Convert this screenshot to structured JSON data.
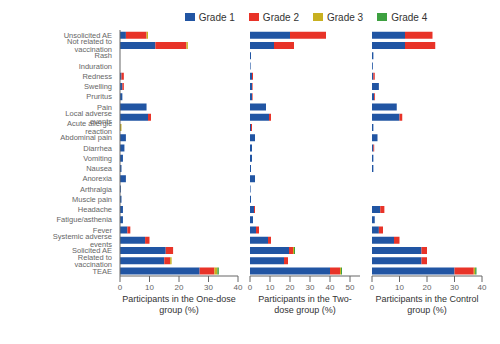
{
  "chart_data": [
    {
      "type": "bar",
      "orientation": "horizontal",
      "stacked": true,
      "legend": "top",
      "x_label": "Participants in the One-dose group (%)",
      "categories": [
        "Unsolicited AE",
        "Not related to vaccination",
        "Rash",
        "Induration",
        "Redness",
        "Swelling",
        "Pruritus",
        "Pain",
        "Local adverse events",
        "Acute allergic reaction",
        "Abdominal pain",
        "Diarrhea",
        "Vomiting",
        "Nausea",
        "Anorexia",
        "Arthralgia",
        "Muscle pain",
        "Headache",
        "Fatigue/asthenia",
        "Fever",
        "Systemic adverse events",
        "Solicited AE",
        "Related to vaccination",
        "TEAE"
      ],
      "xlim": [
        0,
        40
      ],
      "xticks": [
        0,
        10,
        20,
        30,
        40
      ],
      "series": [
        {
          "name": "Grade 1",
          "color": "#2155a3",
          "values": [
            2.0,
            12.0,
            0.0,
            0.0,
            0.5,
            0.8,
            0.8,
            9.0,
            9.5,
            0.0,
            2.0,
            1.5,
            1.0,
            0.5,
            2.0,
            0.3,
            0.5,
            1.0,
            1.0,
            2.5,
            8.5,
            15.5,
            15.0,
            27.0
          ]
        },
        {
          "name": "Grade 2",
          "color": "#e83328",
          "values": [
            7.0,
            10.5,
            0.0,
            0.0,
            0.8,
            0.5,
            0.0,
            0.0,
            1.0,
            0.0,
            0.0,
            0.0,
            0.0,
            0.0,
            0.0,
            0.0,
            0.0,
            0.0,
            0.0,
            1.0,
            1.5,
            2.5,
            2.0,
            5.0
          ]
        },
        {
          "name": "Grade 3",
          "color": "#c8b020",
          "values": [
            0.5,
            0.5,
            0.0,
            0.0,
            0.0,
            0.0,
            0.0,
            0.0,
            0.0,
            0.5,
            0.0,
            0.0,
            0.0,
            0.0,
            0.0,
            0.0,
            0.0,
            0.0,
            0.0,
            0.0,
            0.0,
            0.0,
            0.5,
            1.0
          ]
        },
        {
          "name": "Grade 4",
          "color": "#3da040",
          "values": [
            0.0,
            0.0,
            0.0,
            0.0,
            0.0,
            0.0,
            0.0,
            0.0,
            0.0,
            0.0,
            0.0,
            0.0,
            0.0,
            0.0,
            0.0,
            0.0,
            0.0,
            0.0,
            0.0,
            0.0,
            0.0,
            0.0,
            0.0,
            0.5
          ]
        }
      ]
    },
    {
      "type": "bar",
      "orientation": "horizontal",
      "stacked": true,
      "legend": "top",
      "tick_labels": "x",
      "x_label": "Participants in the Two-dose group (%)",
      "categories": [
        "Unsolicited AE",
        "Not related to vaccination",
        "Rash",
        "Induration",
        "Redness",
        "Swelling",
        "Pruritus",
        "Pain",
        "Local adverse events",
        "Acute allergic reaction",
        "Abdominal pain",
        "Diarrhea",
        "Vomiting",
        "Nausea",
        "Anorexia",
        "Arthralgia",
        "Muscle pain",
        "Headache",
        "Fatigue/asthenia",
        "Fever",
        "Systemic adverse events",
        "Solicited AE",
        "Related to vaccination",
        "TEAE"
      ],
      "xlim": [
        0,
        55
      ],
      "xticks": [
        0,
        10,
        20,
        30,
        40,
        50
      ],
      "series": [
        {
          "name": "Grade 1",
          "color": "#2155a3",
          "values": [
            20.0,
            12.0,
            0.5,
            0.3,
            1.0,
            1.0,
            1.0,
            8.0,
            9.5,
            0.5,
            2.5,
            1.0,
            1.0,
            0.5,
            2.5,
            0.3,
            0.5,
            2.0,
            1.5,
            3.0,
            9.0,
            19.5,
            17.0,
            40.0
          ]
        },
        {
          "name": "Grade 2",
          "color": "#e83328",
          "values": [
            18.0,
            10.0,
            0.0,
            0.0,
            0.5,
            0.3,
            0.3,
            0.0,
            1.0,
            0.5,
            0.0,
            0.0,
            0.0,
            0.0,
            0.0,
            0.0,
            0.0,
            0.5,
            0.0,
            1.5,
            1.5,
            2.0,
            2.0,
            5.0
          ]
        },
        {
          "name": "Grade 3",
          "color": "#c8b020",
          "values": [
            0.0,
            0.0,
            0.0,
            0.0,
            0.0,
            0.0,
            0.0,
            0.0,
            0.0,
            0.0,
            0.0,
            0.0,
            0.0,
            0.0,
            0.0,
            0.0,
            0.0,
            0.0,
            0.0,
            0.0,
            0.0,
            0.5,
            0.0,
            0.5
          ]
        },
        {
          "name": "Grade 4",
          "color": "#3da040",
          "values": [
            0.0,
            0.0,
            0.0,
            0.0,
            0.0,
            0.0,
            0.0,
            0.0,
            0.0,
            0.0,
            0.0,
            0.0,
            0.0,
            0.0,
            0.0,
            0.0,
            0.0,
            0.0,
            0.0,
            0.0,
            0.0,
            0.5,
            0.0,
            0.5
          ]
        }
      ]
    },
    {
      "type": "bar",
      "orientation": "horizontal",
      "stacked": true,
      "legend": "top",
      "tick_labels": "x",
      "x_label": "Participants in the Control group (%)",
      "categories": [
        "Unsolicited AE",
        "Not related to vaccination",
        "Rash",
        "Induration",
        "Redness",
        "Swelling",
        "Pruritus",
        "Pain",
        "Local adverse events",
        "Acute allergic reaction",
        "Abdominal pain",
        "Diarrhea",
        "Vomiting",
        "Nausea",
        "Anorexia",
        "Arthralgia",
        "Muscle pain",
        "Headache",
        "Fatigue/asthenia",
        "Fever",
        "Systemic adverse events",
        "Solicited AE",
        "Related to vaccination",
        "TEAE"
      ],
      "xlim": [
        0,
        40
      ],
      "xticks": [
        0,
        10,
        20,
        30,
        40
      ],
      "series": [
        {
          "name": "Grade 1",
          "color": "#2155a3",
          "values": [
            12.0,
            12.0,
            0.5,
            0.3,
            0.5,
            2.5,
            0.8,
            9.0,
            10.0,
            0.5,
            2.0,
            0.5,
            0.5,
            0.5,
            0.0,
            0.0,
            0.0,
            3.0,
            1.0,
            2.5,
            8.0,
            18.0,
            18.0,
            30.0
          ]
        },
        {
          "name": "Grade 2",
          "color": "#e83328",
          "values": [
            10.0,
            11.0,
            0.0,
            0.0,
            0.5,
            0.0,
            0.3,
            0.0,
            1.0,
            0.0,
            0.0,
            0.3,
            0.0,
            0.0,
            0.0,
            0.0,
            0.0,
            1.5,
            0.0,
            1.5,
            2.0,
            2.0,
            2.0,
            7.0
          ]
        },
        {
          "name": "Grade 3",
          "color": "#c8b020",
          "values": [
            0.0,
            0.0,
            0.0,
            0.0,
            0.0,
            0.0,
            0.0,
            0.0,
            0.0,
            0.0,
            0.0,
            0.0,
            0.0,
            0.0,
            0.0,
            0.0,
            0.0,
            0.0,
            0.0,
            0.0,
            0.0,
            0.0,
            0.0,
            0.5
          ]
        },
        {
          "name": "Grade 4",
          "color": "#3da040",
          "values": [
            0.0,
            0.0,
            0.0,
            0.0,
            0.0,
            0.0,
            0.0,
            0.0,
            0.0,
            0.0,
            0.0,
            0.0,
            0.0,
            0.0,
            0.0,
            0.0,
            0.0,
            0.0,
            0.0,
            0.0,
            0.0,
            0.0,
            0.0,
            0.5
          ]
        }
      ]
    }
  ]
}
